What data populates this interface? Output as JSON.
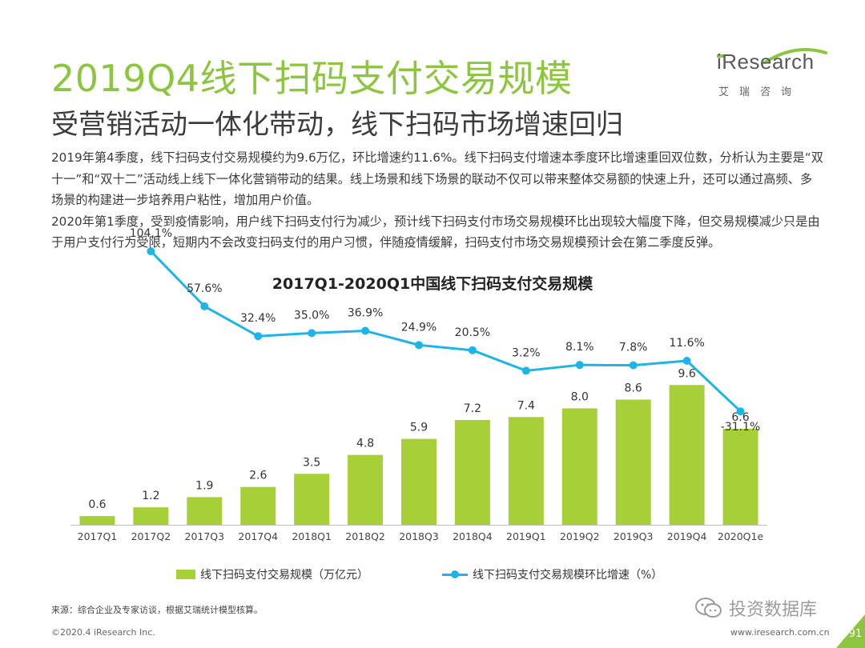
{
  "header": {
    "title": "2019Q4线下扫码支付交易规模",
    "subtitle": "受营销活动一体化带动，线下扫码市场增速回归"
  },
  "logo": {
    "brand": "iResearch",
    "brand_cn": "艾瑞咨询",
    "icon": "iresearch-logo"
  },
  "body": {
    "paragraphs": [
      "2019年第4季度，线下扫码支付交易规模约为9.6万亿，环比增速约11.6%。线下扫码支付增速本季度环比增速重回双位数，分析认为主要是“双十一”和“双十二”活动线上线下一体化营销带动的结果。线上场景和线下场景的联动不仅可以带来整体交易额的快速上升，还可以通过高频、多场景的构建进一步培养用户粘性，增加用户价值。",
      "2020年第1季度，受到疫情影响，用户线下扫码支付行为减少，预计线下扫码支付市场交易规模环比出现较大幅度下降，但交易规模减少只是由于用户支付行为受限，短期内不会改变扫码支付的用户习惯，伴随疫情缓解，扫码支付市场交易规模预计会在第二季度反弹。"
    ]
  },
  "chart_data": {
    "type": "bar",
    "title": "2017Q1-2020Q1中国线下扫码支付交易规模",
    "categories": [
      "2017Q1",
      "2017Q2",
      "2017Q3",
      "2017Q4",
      "2018Q1",
      "2018Q2",
      "2018Q3",
      "2018Q4",
      "2019Q1",
      "2019Q2",
      "2019Q3",
      "2019Q4",
      "2020Q1e"
    ],
    "series": [
      {
        "name": "线下扫码支付交易规模（万亿元）",
        "type": "bar",
        "color": "#a7cf38",
        "values": [
          0.6,
          1.2,
          1.9,
          2.6,
          3.5,
          4.8,
          5.9,
          7.2,
          7.4,
          8.0,
          8.6,
          9.6,
          6.6
        ],
        "labels": [
          "0.6",
          "1.2",
          "1.9",
          "2.6",
          "3.5",
          "4.8",
          "5.9",
          "7.2",
          "7.4",
          "8.0",
          "8.6",
          "9.6",
          "6.6"
        ]
      },
      {
        "name": "线下扫码支付交易规模环比增速（%）",
        "type": "line",
        "color": "#1eb4e6",
        "values": [
          null,
          104.1,
          57.6,
          32.4,
          35.0,
          36.9,
          24.9,
          20.5,
          3.2,
          8.1,
          7.8,
          11.6,
          -31.1
        ],
        "labels": [
          "",
          "104.1%",
          "57.6%",
          "32.4%",
          "35.0%",
          "36.9%",
          "24.9%",
          "20.5%",
          "3.2%",
          "8.1%",
          "7.8%",
          "11.6%",
          "-31.1%"
        ]
      }
    ],
    "legend_position": "bottom",
    "grid": false
  },
  "footer": {
    "source": "来源：综合企业及专家访谈，根据艾瑞统计模型核算。",
    "copyright": "©2020.4 iResearch Inc.",
    "url": "www.iresearch.com.cn",
    "page": "91",
    "watermark": "投资数据库",
    "watermark_icon": "wechat-icon"
  }
}
